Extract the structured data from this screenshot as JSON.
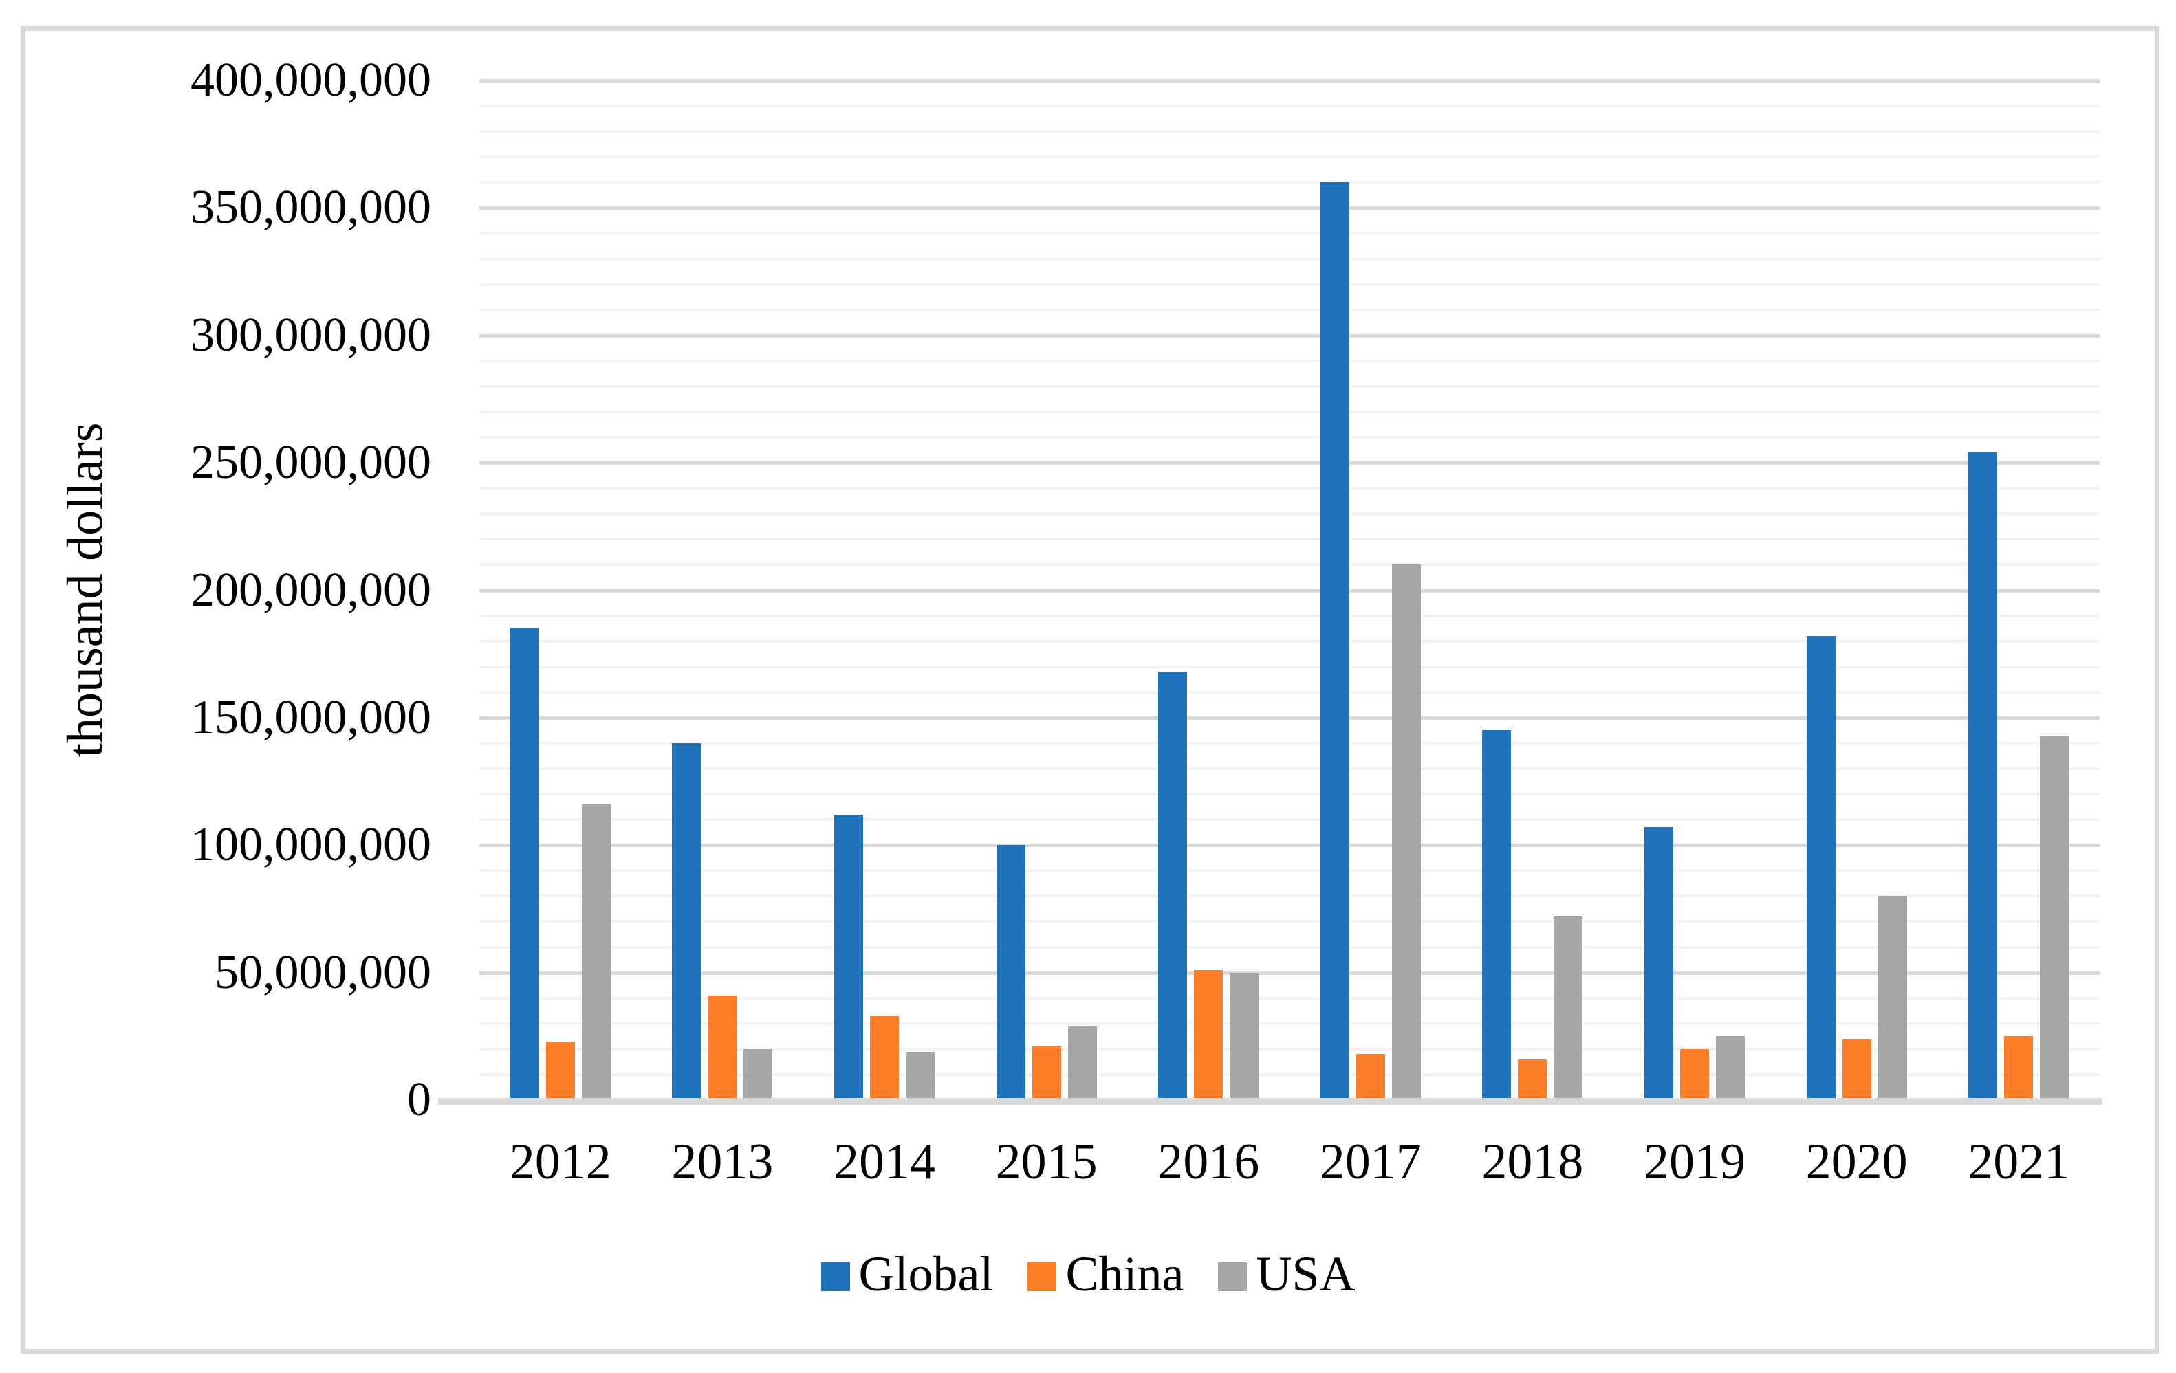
{
  "chart_data": {
    "type": "bar",
    "title": "",
    "xlabel": "",
    "ylabel": "thousand dollars",
    "categories": [
      "2012",
      "2013",
      "2014",
      "2015",
      "2016",
      "2017",
      "2018",
      "2019",
      "2020",
      "2021"
    ],
    "series": [
      {
        "name": "Global",
        "color": "#1F73BD",
        "values": [
          185000000,
          140000000,
          112000000,
          100000000,
          168000000,
          360000000,
          145000000,
          107000000,
          182000000,
          254000000
        ]
      },
      {
        "name": "China",
        "color": "#FC7E28",
        "values": [
          23000000,
          41000000,
          33000000,
          21000000,
          51000000,
          18000000,
          16000000,
          20000000,
          24000000,
          25000000
        ]
      },
      {
        "name": "USA",
        "color": "#A6A6A6",
        "values": [
          116000000,
          20000000,
          19000000,
          29000000,
          50000000,
          210000000,
          72000000,
          25000000,
          80000000,
          143000000
        ]
      }
    ],
    "ylim": [
      0,
      400000000
    ],
    "y_major_step": 50000000,
    "y_minor_step": 10000000,
    "y_tick_labels": [
      "0",
      "50,000,000",
      "100,000,000",
      "150,000,000",
      "200,000,000",
      "250,000,000",
      "300,000,000",
      "350,000,000",
      "400,000,000"
    ],
    "grid": true,
    "legend_position": "bottom"
  },
  "colors": {
    "background": "#FFFFFF",
    "border": "#D9D9D9",
    "axis_line": "#D9D9D9",
    "major_gridline": "#D9D9D9",
    "minor_gridline": "#F2F2F2",
    "text": "#000000"
  }
}
